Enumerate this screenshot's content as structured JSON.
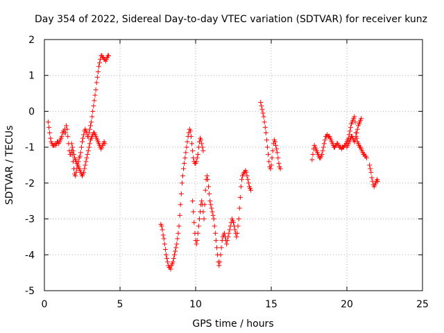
{
  "chart_data": {
    "type": "scatter",
    "title": "Day 354 of 2022, Sidereal Day-to-day VTEC variation (SDTVAR) for receiver kunz",
    "xlabel": "GPS time / hours",
    "ylabel": "SDTVAR / TECUs",
    "xlim": [
      0,
      25
    ],
    "ylim": [
      -5,
      2
    ],
    "xticks": [
      "0",
      "5",
      "10",
      "15",
      "20",
      "25"
    ],
    "yticks": [
      "-5",
      "-4",
      "-3",
      "-2",
      "-1",
      "0",
      "1",
      "2"
    ],
    "grid": true,
    "marker": "+",
    "series": [
      {
        "color": "#ff0000",
        "segments": [
          {
            "x": [
              0.25,
              0.3,
              0.35,
              0.4,
              0.45,
              0.5,
              0.55,
              0.6,
              0.65,
              0.7,
              0.75,
              0.8,
              0.85,
              0.9,
              0.95,
              1.0,
              1.05,
              1.1,
              1.15,
              1.2,
              1.25,
              1.3,
              1.35,
              1.4,
              1.45,
              1.5,
              1.55,
              1.6,
              1.65,
              1.7,
              1.75,
              1.8,
              1.85,
              1.9,
              1.95,
              2.0,
              2.05,
              2.1,
              2.15,
              2.2,
              2.25,
              2.3,
              2.35,
              2.4,
              2.45,
              2.5,
              2.55,
              2.6,
              2.65,
              2.7,
              2.75,
              2.8,
              2.85,
              2.9,
              2.95,
              3.0,
              3.05,
              3.1,
              3.15,
              3.2,
              3.25,
              3.3,
              3.35,
              3.4,
              3.45,
              3.5,
              3.55,
              3.6,
              3.65,
              3.7,
              3.75,
              3.8,
              3.85,
              3.9,
              3.95,
              4.0,
              4.05,
              4.1,
              4.15,
              4.2,
              4.25
            ],
            "y": [
              -0.3,
              -0.45,
              -0.6,
              -0.75,
              -0.85,
              -0.9,
              -0.95,
              -0.95,
              -0.95,
              -0.9,
              -0.95,
              -0.9,
              -0.85,
              -0.85,
              -0.9,
              -0.85,
              -0.8,
              -0.75,
              -0.7,
              -0.6,
              -0.55,
              -0.6,
              -0.5,
              -0.6,
              -0.4,
              -0.5,
              -0.7,
              -0.9,
              -1.1,
              -1.2,
              -1.2,
              -1.1,
              -1.2,
              -1.4,
              -1.6,
              -1.75,
              -1.8,
              -1.7,
              -1.6,
              -1.5,
              -1.4,
              -1.3,
              -1.25,
              -1.15,
              -1.0,
              -0.85,
              -0.75,
              -0.65,
              -0.55,
              -0.5,
              -0.55,
              -0.6,
              -0.7,
              -0.7,
              -0.6,
              -0.5,
              -0.4,
              -0.3,
              -0.15,
              0.0,
              0.15,
              0.3,
              0.45,
              0.6,
              0.8,
              0.95,
              1.1,
              1.25,
              1.35,
              1.45,
              1.55,
              1.55,
              1.5,
              1.5,
              1.45,
              1.45,
              1.4,
              1.45,
              1.5,
              1.55,
              1.55
            ]
          },
          {
            "x": [
              1.8,
              1.85,
              1.9,
              1.95,
              2.0,
              2.05,
              2.1,
              2.15,
              2.2,
              2.25,
              2.3,
              2.35,
              2.4,
              2.45,
              2.5,
              2.55,
              2.6,
              2.65,
              2.7,
              2.75,
              2.8,
              2.85,
              2.9,
              2.95,
              3.0,
              3.05,
              3.1,
              3.15,
              3.2,
              3.25,
              3.3,
              3.35,
              3.4,
              3.45,
              3.5,
              3.55,
              3.6,
              3.65,
              3.7,
              3.75,
              3.8,
              3.85,
              3.9,
              3.95,
              4.0
            ],
            "y": [
              -0.9,
              -1.0,
              -1.1,
              -1.2,
              -1.3,
              -1.35,
              -1.4,
              -1.45,
              -1.5,
              -1.55,
              -1.6,
              -1.65,
              -1.7,
              -1.75,
              -1.8,
              -1.75,
              -1.7,
              -1.6,
              -1.5,
              -1.4,
              -1.3,
              -1.2,
              -1.1,
              -1.0,
              -0.9,
              -0.8,
              -0.75,
              -0.7,
              -0.65,
              -0.6,
              -0.6,
              -0.65,
              -0.7,
              -0.75,
              -0.8,
              -0.85,
              -0.9,
              -0.95,
              -1.0,
              -1.05,
              -1.0,
              -0.95,
              -0.9,
              -0.85,
              -0.9
            ]
          },
          {
            "x": [
              7.7,
              7.75,
              7.8,
              7.85,
              7.9,
              7.95,
              8.0,
              8.05,
              8.1,
              8.15,
              8.2,
              8.25,
              8.3,
              8.35,
              8.4,
              8.45,
              8.5,
              8.55,
              8.6,
              8.65,
              8.7,
              8.75,
              8.8,
              8.85,
              8.9,
              8.95,
              9.0,
              9.05,
              9.1,
              9.15,
              9.2,
              9.25,
              9.3,
              9.35,
              9.4,
              9.45,
              9.5,
              9.55,
              9.6,
              9.65,
              9.7,
              9.75,
              9.8,
              9.85,
              9.9,
              9.95,
              10.0,
              10.05,
              10.1,
              10.15,
              10.2,
              10.25,
              10.3,
              10.35,
              10.4,
              10.45,
              10.5
            ],
            "y": [
              -3.15,
              -3.2,
              -3.3,
              -3.45,
              -3.55,
              -3.7,
              -3.85,
              -4.0,
              -4.1,
              -4.2,
              -4.3,
              -4.35,
              -4.35,
              -4.4,
              -4.3,
              -4.25,
              -4.2,
              -4.1,
              -4.0,
              -3.9,
              -3.8,
              -3.7,
              -3.55,
              -3.4,
              -3.2,
              -2.9,
              -2.6,
              -2.3,
              -2.0,
              -1.8,
              -1.6,
              -1.45,
              -1.3,
              -1.15,
              -1.0,
              -0.85,
              -0.7,
              -0.6,
              -0.5,
              -0.55,
              -0.7,
              -0.9,
              -1.1,
              -1.3,
              -1.4,
              -1.45,
              -1.45,
              -1.4,
              -1.3,
              -1.2,
              -1.0,
              -0.85,
              -0.75,
              -0.8,
              -0.9,
              -1.0,
              -1.1
            ]
          },
          {
            "x": [
              9.8,
              9.85,
              9.9,
              9.95,
              10.0,
              10.05,
              10.1,
              10.15,
              10.2,
              10.25,
              10.3,
              10.35,
              10.4,
              10.45,
              10.5,
              10.55,
              10.6,
              10.65,
              10.7,
              10.75,
              10.8,
              10.85,
              10.9,
              10.95,
              11.0,
              11.05,
              11.1,
              11.15,
              11.2,
              11.25,
              11.3,
              11.35,
              11.4,
              11.45,
              11.5,
              11.55,
              11.6,
              11.65,
              11.7,
              11.75,
              11.8,
              11.85,
              11.9,
              11.95,
              12.0,
              12.05,
              12.1,
              12.15,
              12.2,
              12.25,
              12.3,
              12.35,
              12.4,
              12.45,
              12.5,
              12.55,
              12.6,
              12.65,
              12.7,
              12.75,
              12.8,
              12.85,
              12.9,
              12.95,
              13.0,
              13.05,
              13.1,
              13.15,
              13.2,
              13.25,
              13.3,
              13.35,
              13.4,
              13.45,
              13.5,
              13.55,
              13.6,
              13.65
            ],
            "y": [
              -2.5,
              -2.8,
              -3.1,
              -3.4,
              -3.6,
              -3.7,
              -3.6,
              -3.4,
              -3.2,
              -3.0,
              -2.8,
              -2.6,
              -2.5,
              -2.6,
              -2.8,
              -3.0,
              -2.6,
              -2.2,
              -1.9,
              -1.8,
              -1.9,
              -2.1,
              -2.3,
              -2.5,
              -2.6,
              -2.7,
              -2.8,
              -2.9,
              -3.0,
              -3.2,
              -3.4,
              -3.6,
              -3.8,
              -4.0,
              -4.2,
              -4.3,
              -4.2,
              -4.0,
              -3.8,
              -3.6,
              -3.5,
              -3.45,
              -3.4,
              -3.5,
              -3.6,
              -3.7,
              -3.6,
              -3.5,
              -3.4,
              -3.3,
              -3.2,
              -3.1,
              -3.0,
              -3.05,
              -3.1,
              -3.2,
              -3.3,
              -3.4,
              -3.5,
              -3.4,
              -3.2,
              -3.0,
              -2.7,
              -2.4,
              -2.1,
              -1.9,
              -1.8,
              -1.75,
              -1.7,
              -1.7,
              -1.65,
              -1.7,
              -1.8,
              -1.9,
              -2.0,
              -2.1,
              -2.15,
              -2.2
            ]
          },
          {
            "x": [
              14.3,
              14.35,
              14.4,
              14.45,
              14.5,
              14.55,
              14.6,
              14.65,
              14.7,
              14.75,
              14.8,
              14.85,
              14.9,
              14.95,
              15.0,
              15.05,
              15.1,
              15.15,
              15.2,
              15.25,
              15.3,
              15.35,
              15.4,
              15.45,
              15.5,
              15.55,
              15.6
            ],
            "y": [
              0.25,
              0.15,
              0.05,
              -0.05,
              -0.15,
              -0.3,
              -0.45,
              -0.6,
              -0.8,
              -1.0,
              -1.2,
              -1.4,
              -1.55,
              -1.6,
              -1.5,
              -1.3,
              -1.1,
              -0.9,
              -0.8,
              -0.85,
              -0.95,
              -1.05,
              -1.15,
              -1.3,
              -1.45,
              -1.55,
              -1.6
            ]
          },
          {
            "x": [
              17.7,
              17.75,
              17.8,
              17.85,
              17.9,
              17.95,
              18.0,
              18.05,
              18.1,
              18.15,
              18.2,
              18.25,
              18.3,
              18.35,
              18.4,
              18.45,
              18.5,
              18.55,
              18.6,
              18.65,
              18.7,
              18.75,
              18.8,
              18.85,
              18.9,
              18.95,
              19.0,
              19.05,
              19.1,
              19.15,
              19.2,
              19.25,
              19.3,
              19.35,
              19.4,
              19.45,
              19.5,
              19.55,
              19.6,
              19.65,
              19.7,
              19.75,
              19.8,
              19.85,
              19.9,
              19.95,
              20.0,
              20.05,
              20.1,
              20.15,
              20.2,
              20.25,
              20.3,
              20.35,
              20.4,
              20.45,
              20.5,
              20.55,
              20.6,
              20.65,
              20.7,
              20.75,
              20.8,
              20.85,
              20.9,
              20.95,
              21.0,
              21.05,
              21.1,
              21.15,
              21.2,
              21.25,
              21.3
            ],
            "y": [
              -1.35,
              -1.2,
              -1.05,
              -0.95,
              -1.0,
              -1.05,
              -1.1,
              -1.15,
              -1.2,
              -1.25,
              -1.3,
              -1.3,
              -1.25,
              -1.2,
              -1.1,
              -1.0,
              -0.9,
              -0.8,
              -0.7,
              -0.7,
              -0.65,
              -0.7,
              -0.7,
              -0.7,
              -0.75,
              -0.8,
              -0.85,
              -0.9,
              -0.95,
              -1.0,
              -1.0,
              -0.95,
              -0.95,
              -0.9,
              -0.9,
              -0.95,
              -1.0,
              -1.0,
              -1.0,
              -1.05,
              -1.0,
              -1.0,
              -1.0,
              -0.95,
              -0.95,
              -0.9,
              -0.85,
              -0.8,
              -0.75,
              -0.65,
              -0.55,
              -0.45,
              -0.35,
              -0.3,
              -0.25,
              -0.2,
              -0.15,
              -0.3,
              -0.6,
              -0.75,
              -0.85,
              -0.9,
              -0.95,
              -1.0,
              -1.0,
              -1.05,
              -1.1,
              -1.15,
              -1.2,
              -1.2,
              -1.25,
              -1.25,
              -1.3
            ]
          },
          {
            "x": [
              20.0,
              20.05,
              20.1,
              20.15,
              20.2,
              20.25,
              20.3,
              20.35,
              20.4,
              20.45,
              20.5,
              20.55,
              20.6,
              20.65,
              20.7,
              20.75,
              20.8,
              20.85,
              20.9,
              20.95
            ],
            "y": [
              -1.0,
              -0.95,
              -0.9,
              -0.85,
              -0.8,
              -0.75,
              -0.7,
              -0.7,
              -0.75,
              -0.8,
              -0.85,
              -0.8,
              -0.7,
              -0.6,
              -0.5,
              -0.4,
              -0.35,
              -0.3,
              -0.25,
              -0.2
            ]
          },
          {
            "x": [
              21.5,
              21.55,
              21.6,
              21.65,
              21.7,
              21.75,
              21.8,
              21.85,
              21.9,
              21.95,
              22.0,
              22.05
            ],
            "y": [
              -1.5,
              -1.6,
              -1.7,
              -1.85,
              -1.95,
              -2.05,
              -2.1,
              -2.05,
              -2.0,
              -1.95,
              -1.9,
              -1.95
            ]
          }
        ]
      }
    ]
  }
}
